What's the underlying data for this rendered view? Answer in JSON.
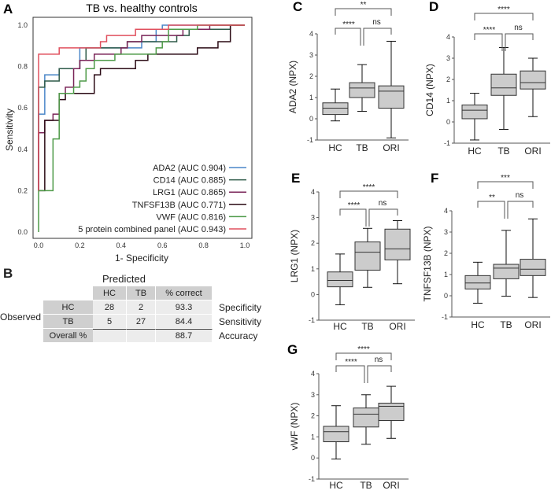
{
  "chart_data": [
    {
      "panel": "A",
      "type": "line",
      "title": "TB vs. healthy controls",
      "xlabel": "1- Specificity",
      "ylabel": "Sensitivity",
      "xlim": [
        0,
        1
      ],
      "ylim": [
        0,
        1
      ],
      "xticks": [
        "0.0",
        "0.2",
        "0.4",
        "0.6",
        "0.8",
        "1.0"
      ],
      "yticks": [
        "0.0",
        "0.2",
        "0.4",
        "0.6",
        "0.8",
        "1.0"
      ],
      "legend_position": "bottom-right",
      "grid": false,
      "series": [
        {
          "name": "ADA2 (AUC 0.904)",
          "color": "#4a86c8",
          "points": [
            [
              0,
              0.2
            ],
            [
              0,
              0.57
            ],
            [
              0.03,
              0.57
            ],
            [
              0.03,
              0.76
            ],
            [
              0.1,
              0.76
            ],
            [
              0.1,
              0.79
            ],
            [
              0.2,
              0.79
            ],
            [
              0.2,
              0.89
            ],
            [
              0.5,
              0.89
            ],
            [
              0.5,
              0.92
            ],
            [
              0.57,
              0.92
            ],
            [
              0.57,
              0.98
            ],
            [
              0.6,
              0.98
            ],
            [
              0.6,
              1
            ],
            [
              1,
              1
            ]
          ]
        },
        {
          "name": "CD14 (AUC 0.885)",
          "color": "#2e5a48",
          "points": [
            [
              0,
              0.2
            ],
            [
              0,
              0.7
            ],
            [
              0.03,
              0.7
            ],
            [
              0.03,
              0.73
            ],
            [
              0.1,
              0.73
            ],
            [
              0.1,
              0.79
            ],
            [
              0.2,
              0.79
            ],
            [
              0.2,
              0.83
            ],
            [
              0.23,
              0.83
            ],
            [
              0.23,
              0.89
            ],
            [
              0.43,
              0.89
            ],
            [
              0.43,
              0.92
            ],
            [
              0.67,
              0.92
            ],
            [
              0.67,
              0.95
            ],
            [
              0.73,
              0.95
            ],
            [
              0.73,
              0.98
            ],
            [
              0.93,
              0.98
            ],
            [
              0.93,
              1
            ],
            [
              1,
              1
            ]
          ]
        },
        {
          "name": "LRG1 (AUC 0.865)",
          "color": "#7a2458",
          "points": [
            [
              0,
              0.2
            ],
            [
              0,
              0.48
            ],
            [
              0.03,
              0.48
            ],
            [
              0.03,
              0.54
            ],
            [
              0.07,
              0.54
            ],
            [
              0.07,
              0.57
            ],
            [
              0.1,
              0.57
            ],
            [
              0.1,
              0.67
            ],
            [
              0.13,
              0.67
            ],
            [
              0.13,
              0.7
            ],
            [
              0.17,
              0.7
            ],
            [
              0.17,
              0.79
            ],
            [
              0.2,
              0.79
            ],
            [
              0.2,
              0.83
            ],
            [
              0.27,
              0.83
            ],
            [
              0.27,
              0.86
            ],
            [
              0.4,
              0.86
            ],
            [
              0.4,
              0.89
            ],
            [
              0.43,
              0.89
            ],
            [
              0.43,
              0.92
            ],
            [
              0.5,
              0.92
            ],
            [
              0.5,
              0.95
            ],
            [
              0.7,
              0.95
            ],
            [
              0.7,
              0.98
            ],
            [
              0.83,
              0.98
            ],
            [
              0.83,
              1
            ],
            [
              1,
              1
            ]
          ]
        },
        {
          "name": "TNFSF13B (AUC 0.771)",
          "color": "#2a0a14",
          "points": [
            [
              0,
              0.2
            ],
            [
              0.03,
              0.2
            ],
            [
              0.03,
              0.54
            ],
            [
              0.1,
              0.54
            ],
            [
              0.1,
              0.64
            ],
            [
              0.13,
              0.64
            ],
            [
              0.13,
              0.67
            ],
            [
              0.27,
              0.67
            ],
            [
              0.27,
              0.76
            ],
            [
              0.3,
              0.76
            ],
            [
              0.3,
              0.79
            ],
            [
              0.47,
              0.79
            ],
            [
              0.47,
              0.83
            ],
            [
              0.53,
              0.83
            ],
            [
              0.53,
              0.86
            ],
            [
              0.77,
              0.86
            ],
            [
              0.77,
              0.89
            ],
            [
              0.87,
              0.89
            ],
            [
              0.87,
              0.92
            ],
            [
              0.93,
              0.92
            ],
            [
              0.93,
              1
            ],
            [
              1,
              1
            ]
          ]
        },
        {
          "name": "VWF (AUC 0.816)",
          "color": "#4e9a48",
          "points": [
            [
              0,
              0
            ],
            [
              0,
              0.2
            ],
            [
              0.07,
              0.2
            ],
            [
              0.07,
              0.45
            ],
            [
              0.1,
              0.45
            ],
            [
              0.1,
              0.67
            ],
            [
              0.17,
              0.67
            ],
            [
              0.17,
              0.7
            ],
            [
              0.2,
              0.7
            ],
            [
              0.2,
              0.73
            ],
            [
              0.23,
              0.73
            ],
            [
              0.23,
              0.79
            ],
            [
              0.27,
              0.79
            ],
            [
              0.27,
              0.83
            ],
            [
              0.37,
              0.83
            ],
            [
              0.37,
              0.86
            ],
            [
              0.57,
              0.86
            ],
            [
              0.57,
              0.89
            ],
            [
              0.6,
              0.89
            ],
            [
              0.6,
              0.92
            ],
            [
              0.63,
              0.92
            ],
            [
              0.63,
              0.98
            ],
            [
              0.77,
              0.98
            ],
            [
              0.77,
              1
            ],
            [
              1,
              1
            ]
          ]
        },
        {
          "name": "5 protein combined panel (AUC 0.943)",
          "color": "#e0505e",
          "points": [
            [
              0,
              0.2
            ],
            [
              0,
              0.86
            ],
            [
              0.1,
              0.86
            ],
            [
              0.1,
              0.89
            ],
            [
              0.3,
              0.89
            ],
            [
              0.3,
              0.92
            ],
            [
              0.33,
              0.92
            ],
            [
              0.33,
              0.95
            ],
            [
              0.47,
              0.95
            ],
            [
              0.47,
              0.98
            ],
            [
              0.63,
              0.98
            ],
            [
              0.63,
              1
            ],
            [
              1,
              1
            ]
          ]
        }
      ]
    },
    {
      "panel": "C",
      "type": "box",
      "ylabel": "ADA2 (NPX)",
      "ylim": [
        -1,
        4
      ],
      "yticks": [
        "-1",
        "0",
        "1",
        "2",
        "3",
        "4"
      ],
      "categories": [
        "HC",
        "TB",
        "ORI"
      ],
      "boxes": [
        [
          -0.1,
          0.2,
          0.5,
          0.75,
          1.4
        ],
        [
          0.35,
          1.0,
          1.45,
          1.7,
          2.55
        ],
        [
          -0.9,
          0.5,
          1.3,
          1.55,
          3.65
        ]
      ],
      "significance": {
        "HC-TB": "****",
        "TB-ORI": "ns",
        "HC-ORI": "**"
      }
    },
    {
      "panel": "D",
      "type": "box",
      "ylabel": "CD14 (NPX)",
      "ylim": [
        -1,
        4
      ],
      "yticks": [
        "-1",
        "0",
        "1",
        "2",
        "3",
        "4"
      ],
      "categories": [
        "HC",
        "TB",
        "ORI"
      ],
      "boxes": [
        [
          -0.85,
          0.15,
          0.55,
          0.8,
          1.35
        ],
        [
          -0.35,
          1.25,
          1.6,
          2.25,
          3.5
        ],
        [
          0.25,
          1.55,
          1.85,
          2.4,
          3.0
        ]
      ],
      "significance": {
        "HC-TB": "****",
        "TB-ORI": "ns",
        "HC-ORI": "****"
      }
    },
    {
      "panel": "E",
      "type": "box",
      "ylabel": "LRG1 (NPX)",
      "ylim": [
        -1,
        4
      ],
      "yticks": [
        "-1",
        "0",
        "1",
        "2",
        "3",
        "4"
      ],
      "categories": [
        "HC",
        "TB",
        "ORI"
      ],
      "boxes": [
        [
          -0.4,
          0.3,
          0.55,
          0.88,
          1.58
        ],
        [
          0.28,
          0.95,
          1.65,
          2.05,
          2.58
        ],
        [
          0.42,
          1.35,
          1.78,
          2.55,
          2.88
        ]
      ],
      "significance": {
        "HC-TB": "****",
        "TB-ORI": "ns",
        "HC-ORI": "****"
      }
    },
    {
      "panel": "F",
      "type": "box",
      "ylabel": "TNFSF13B (NPX)",
      "ylim": [
        -1,
        4
      ],
      "yticks": [
        "-1",
        "0",
        "1",
        "2",
        "3",
        "4"
      ],
      "categories": [
        "HC",
        "TB",
        "ORI"
      ],
      "boxes": [
        [
          -0.35,
          0.32,
          0.6,
          0.95,
          1.58
        ],
        [
          -0.02,
          0.8,
          1.3,
          1.48,
          3.08
        ],
        [
          -0.08,
          0.95,
          1.25,
          1.72,
          3.62
        ]
      ],
      "significance": {
        "HC-TB": "**",
        "TB-ORI": "ns",
        "HC-ORI": "***"
      }
    },
    {
      "panel": "G",
      "type": "box",
      "ylabel": "vWF (NPX)",
      "ylim": [
        -1,
        4
      ],
      "yticks": [
        "-1",
        "0",
        "1",
        "2",
        "3",
        "4"
      ],
      "categories": [
        "HC",
        "TB",
        "ORI"
      ],
      "boxes": [
        [
          -0.05,
          0.77,
          1.25,
          1.5,
          2.48
        ],
        [
          0.65,
          1.47,
          2.08,
          2.37,
          3.0
        ],
        [
          0.93,
          1.78,
          2.45,
          2.6,
          3.4
        ]
      ],
      "significance": {
        "HC-TB": "****",
        "TB-ORI": "ns",
        "HC-ORI": "****"
      }
    }
  ],
  "table": {
    "panel": "B",
    "predicted_label": "Predicted",
    "observed_label": "Observed",
    "headers": [
      "HC",
      "TB",
      "% correct"
    ],
    "rows": [
      {
        "label": "HC",
        "cells": [
          "28",
          "2",
          "93.3"
        ],
        "note": "Specificity"
      },
      {
        "label": "TB",
        "cells": [
          "5",
          "27",
          "84.4"
        ],
        "note": "Sensitivity"
      },
      {
        "label": "Overall %",
        "cells": [
          "",
          "",
          "88.7"
        ],
        "note": "Accuracy"
      }
    ]
  },
  "colors": {
    "box_fill": "#cccccc",
    "axis": "#555555"
  }
}
